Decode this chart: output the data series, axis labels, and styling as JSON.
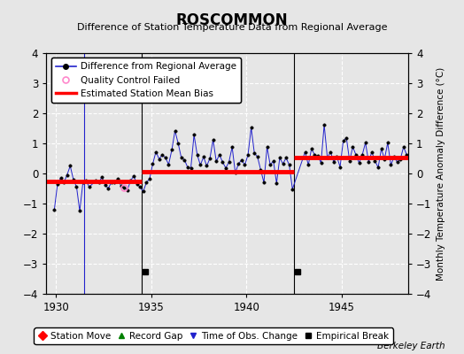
{
  "title": "ROSCOMMON",
  "subtitle": "Difference of Station Temperature Data from Regional Average",
  "ylabel": "Monthly Temperature Anomaly Difference (°C)",
  "credit": "Berkeley Earth",
  "xlim": [
    1929.5,
    1948.5
  ],
  "ylim": [
    -4,
    4
  ],
  "yticks": [
    -4,
    -3,
    -2,
    -1,
    0,
    1,
    2,
    3,
    4
  ],
  "xticks": [
    1930,
    1935,
    1940,
    1945
  ],
  "background_color": "#e6e6e6",
  "plot_bg_color": "#e6e6e6",
  "grid_color": "#ffffff",
  "blue_line_color": "#2222cc",
  "red_line_color": "#ff0000",
  "segment1_start": 1929.5,
  "segment1_end": 1934.5,
  "segment1_bias": -0.27,
  "segment2_start": 1934.5,
  "segment2_end": 1942.5,
  "segment2_bias": 0.07,
  "segment3_start": 1942.5,
  "segment3_end": 1948.5,
  "segment3_bias": 0.52,
  "obs_change_line_x": 1931.5,
  "break_line1_x": 1934.5,
  "break_line2_x": 1942.5,
  "empirical_break1_x": 1934.67,
  "empirical_break2_x": 1942.67,
  "empirical_break_y": -3.25,
  "data_x": [
    1929.917,
    1930.083,
    1930.25,
    1930.417,
    1930.583,
    1930.75,
    1930.917,
    1931.083,
    1931.25,
    1931.417,
    1931.583,
    1931.75,
    1932.083,
    1932.25,
    1932.417,
    1932.583,
    1932.75,
    1932.917,
    1933.083,
    1933.25,
    1933.417,
    1933.583,
    1933.75,
    1933.917,
    1934.083,
    1934.25,
    1934.417,
    1934.583,
    1934.75,
    1934.917,
    1935.083,
    1935.25,
    1935.417,
    1935.583,
    1935.75,
    1935.917,
    1936.083,
    1936.25,
    1936.417,
    1936.583,
    1936.75,
    1936.917,
    1937.083,
    1937.25,
    1937.417,
    1937.583,
    1937.75,
    1937.917,
    1938.083,
    1938.25,
    1938.417,
    1938.583,
    1938.75,
    1938.917,
    1939.083,
    1939.25,
    1939.417,
    1939.583,
    1939.75,
    1939.917,
    1940.083,
    1940.25,
    1940.417,
    1940.583,
    1940.75,
    1940.917,
    1941.083,
    1941.25,
    1941.417,
    1941.583,
    1941.75,
    1941.917,
    1942.083,
    1942.25,
    1942.417,
    1943.083,
    1943.25,
    1943.417,
    1943.583,
    1943.75,
    1943.917,
    1944.083,
    1944.25,
    1944.417,
    1944.583,
    1944.75,
    1944.917,
    1945.083,
    1945.25,
    1945.417,
    1945.583,
    1945.75,
    1945.917,
    1946.083,
    1946.25,
    1946.417,
    1946.583,
    1946.75,
    1946.917,
    1947.083,
    1947.25,
    1947.417,
    1947.583,
    1947.75,
    1947.917,
    1948.083,
    1948.25,
    1948.417
  ],
  "data_y": [
    -1.2,
    -0.35,
    -0.15,
    -0.3,
    -0.05,
    0.25,
    -0.2,
    -0.45,
    -1.25,
    -0.3,
    -0.25,
    -0.45,
    -0.25,
    -0.3,
    -0.12,
    -0.38,
    -0.5,
    -0.28,
    -0.28,
    -0.18,
    -0.42,
    -0.48,
    -0.55,
    -0.25,
    -0.08,
    -0.35,
    -0.45,
    -0.6,
    -0.3,
    -0.18,
    0.32,
    0.72,
    0.48,
    0.62,
    0.52,
    0.3,
    0.78,
    1.42,
    1.0,
    0.52,
    0.45,
    0.2,
    0.18,
    1.28,
    0.62,
    0.28,
    0.55,
    0.25,
    0.5,
    1.12,
    0.4,
    0.62,
    0.38,
    0.18,
    0.38,
    0.88,
    0.02,
    0.32,
    0.45,
    0.28,
    0.62,
    1.52,
    0.68,
    0.55,
    0.12,
    -0.3,
    0.88,
    0.28,
    0.42,
    -0.32,
    0.52,
    0.32,
    0.52,
    0.28,
    -0.52,
    0.72,
    0.28,
    0.82,
    0.62,
    0.58,
    0.35,
    1.62,
    0.52,
    0.72,
    0.38,
    0.55,
    0.22,
    1.08,
    1.18,
    0.42,
    0.88,
    0.62,
    0.35,
    0.62,
    1.02,
    0.38,
    0.72,
    0.42,
    0.2,
    0.82,
    0.48,
    1.02,
    0.28,
    0.55,
    0.38,
    0.48,
    0.88,
    0.62
  ],
  "qc_failed_x": [
    1933.583
  ],
  "qc_failed_y": [
    -0.48
  ],
  "title_fontsize": 12,
  "subtitle_fontsize": 8,
  "tick_fontsize": 8.5,
  "legend_fontsize": 7.5,
  "ylabel_fontsize": 7.5
}
